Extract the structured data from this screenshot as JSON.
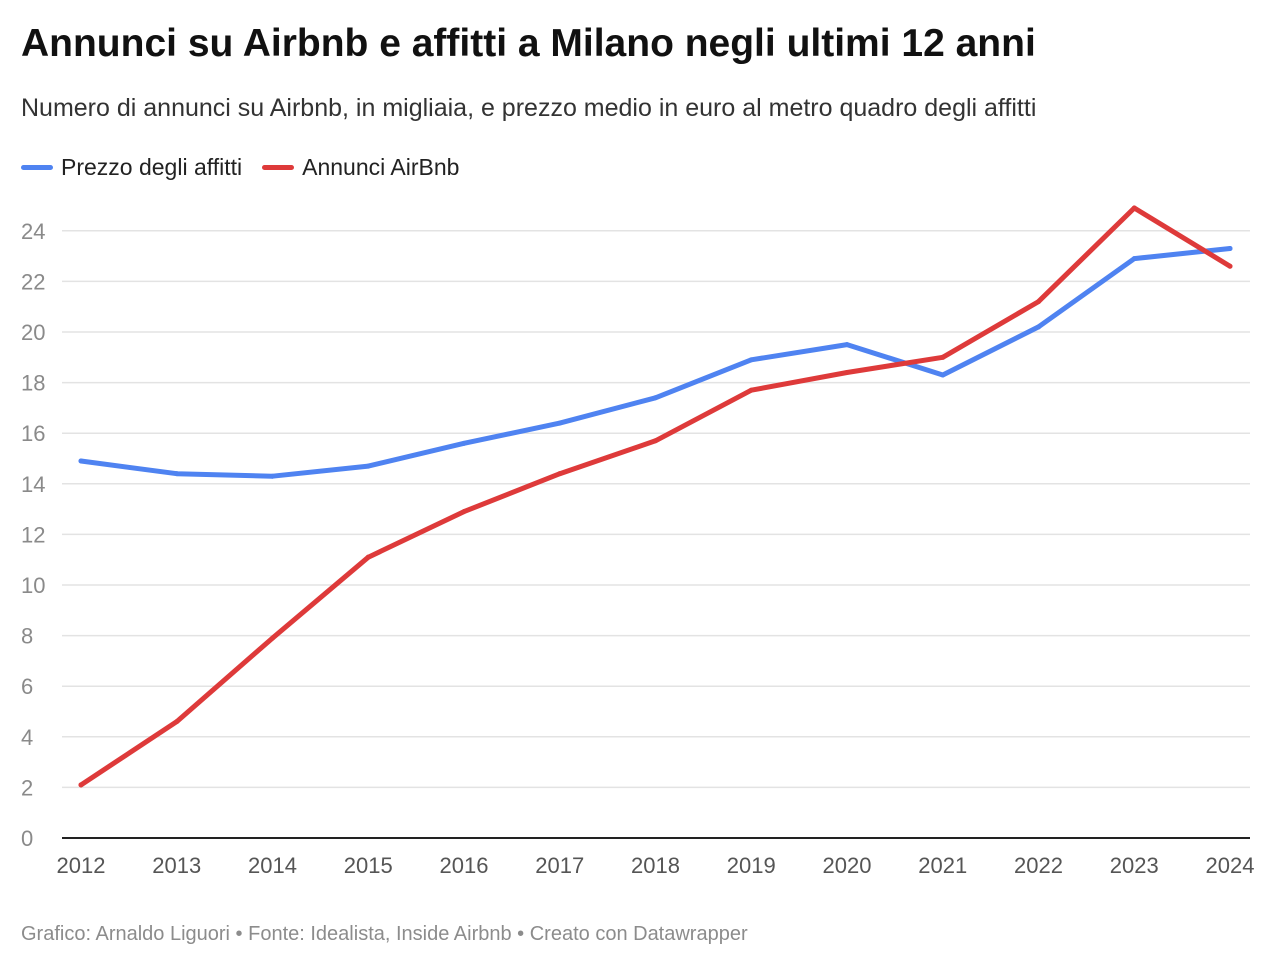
{
  "title": "Annunci su Airbnb e affitti a Milano negli ultimi 12 anni",
  "subtitle": "Numero di annunci su Airbnb, in migliaia, e prezzo medio in euro al metro quadro degli affitti",
  "footer": "Grafico: Arnaldo Liguori • Fonte: Idealista, Inside Airbnb • Creato con Datawrapper",
  "chart_data": {
    "type": "line",
    "title": "Annunci su Airbnb e affitti a Milano negli ultimi 12 anni",
    "subtitle": "Numero di annunci su Airbnb, in migliaia, e prezzo medio in euro al metro quadro degli affitti",
    "xlabel": "",
    "ylabel": "",
    "x": [
      "2012",
      "2013",
      "2014",
      "2015",
      "2016",
      "2017",
      "2018",
      "2019",
      "2020",
      "2021",
      "2022",
      "2023",
      "2024"
    ],
    "ylim": [
      0,
      25
    ],
    "yticks": [
      0,
      2,
      4,
      6,
      8,
      10,
      12,
      14,
      16,
      18,
      20,
      22,
      24
    ],
    "grid": true,
    "legend_position": "top-left",
    "series": [
      {
        "name": "Prezzo degli affitti",
        "color": "#4f83f1",
        "values": [
          14.9,
          14.4,
          14.3,
          14.7,
          15.6,
          16.4,
          17.4,
          18.9,
          19.5,
          18.3,
          20.2,
          22.9,
          23.3
        ]
      },
      {
        "name": "Annunci AirBnb",
        "color": "#de3a3a",
        "values": [
          2.1,
          4.6,
          7.9,
          11.1,
          12.9,
          14.4,
          15.7,
          17.7,
          18.4,
          19.0,
          21.2,
          24.9,
          22.6
        ]
      }
    ]
  }
}
